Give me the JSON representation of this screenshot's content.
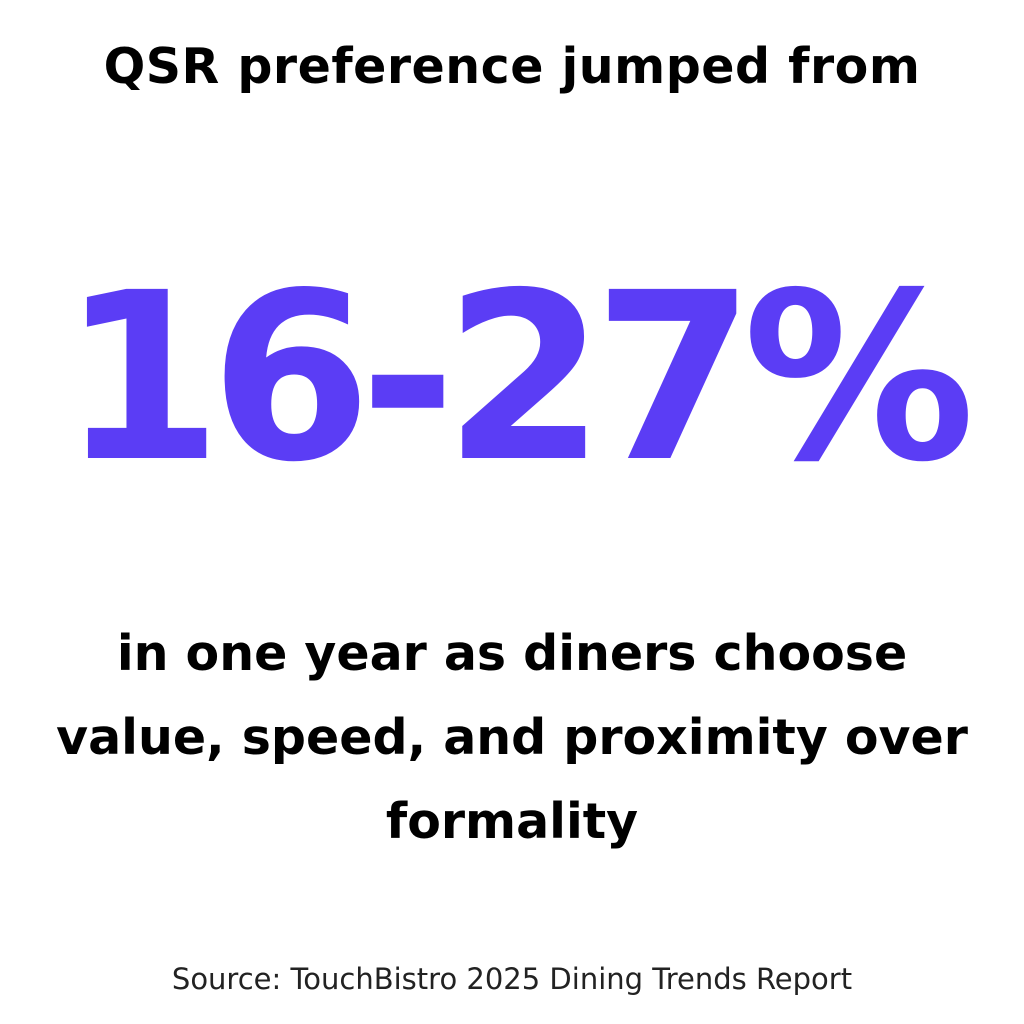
{
  "headline": "QSR preference jumped from",
  "stat": {
    "value": "16-27%",
    "color": "#5b3df5"
  },
  "body_lines": [
    "in one year as diners choose",
    "value, speed, and proximity over",
    "formality"
  ],
  "source": "Source: TouchBistro 2025 Dining Trends Report"
}
